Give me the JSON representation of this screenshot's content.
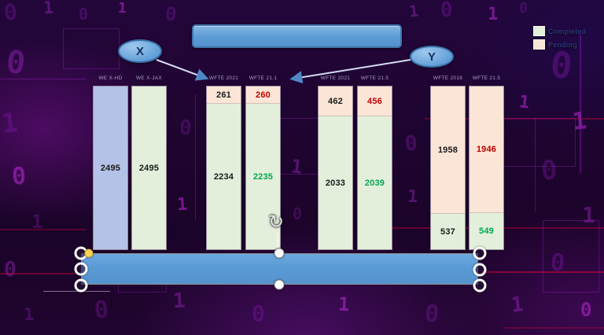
{
  "slide": {
    "title_bar_text": "",
    "legend": {
      "items": [
        {
          "label": "Completed",
          "color": "#e3efdb"
        },
        {
          "label": "Pending",
          "color": "#fbe5d6"
        }
      ]
    },
    "callouts": {
      "x_label": "X",
      "y_label": "Y"
    }
  },
  "colors": {
    "accent_blue": "#5b9bd5",
    "completed_green": "#e3efdb",
    "pending_pink": "#fbe5d6",
    "completed_blue_variant": "#b4c2e7",
    "value_black": "#1a1a1a",
    "value_red": "#c00000",
    "value_green": "#00a651"
  },
  "chart_data": {
    "type": "bar",
    "subtype": "100pct-stacked-column-pairs",
    "title": "",
    "legend_entries": [
      "Completed",
      "Pending"
    ],
    "legend_position": "top-right",
    "total_per_column": 2495,
    "series_colors": {
      "Completed": "#e3efdb",
      "Pending": "#fbe5d6"
    },
    "columns": [
      {
        "header": "WE X-HD",
        "fill_variant": "blue",
        "segments_top_to_bottom": [
          {
            "series": "Completed",
            "value": 2495,
            "label": "2495",
            "label_color": "#1a1a1a"
          }
        ]
      },
      {
        "header": "WE X-JAX",
        "fill_variant": "green",
        "segments_top_to_bottom": [
          {
            "series": "Completed",
            "value": 2495,
            "label": "2495",
            "label_color": "#1a1a1a"
          }
        ]
      },
      {
        "header": "WFTE 2021",
        "fill_variant": "green",
        "segments_top_to_bottom": [
          {
            "series": "Pending",
            "value": 261,
            "label": "261",
            "label_color": "#1a1a1a"
          },
          {
            "series": "Completed",
            "value": 2234,
            "label": "2234",
            "label_color": "#1a1a1a"
          }
        ]
      },
      {
        "header": "WFTE 21.1",
        "fill_variant": "green",
        "segments_top_to_bottom": [
          {
            "series": "Pending",
            "value": 260,
            "label": "260",
            "label_color": "#c00000"
          },
          {
            "series": "Completed",
            "value": 2235,
            "label": "2235",
            "label_color": "#00a651"
          }
        ]
      },
      {
        "header": "WFTE 2021",
        "fill_variant": "green",
        "segments_top_to_bottom": [
          {
            "series": "Pending",
            "value": 462,
            "label": "462",
            "label_color": "#1a1a1a"
          },
          {
            "series": "Completed",
            "value": 2033,
            "label": "2033",
            "label_color": "#1a1a1a"
          }
        ]
      },
      {
        "header": "WFTE 21.5",
        "fill_variant": "green",
        "segments_top_to_bottom": [
          {
            "series": "Pending",
            "value": 456,
            "label": "456",
            "label_color": "#c00000"
          },
          {
            "series": "Completed",
            "value": 2039,
            "label": "2039",
            "label_color": "#00a651"
          }
        ]
      },
      {
        "header": "WFTE 2018",
        "fill_variant": "green",
        "segments_top_to_bottom": [
          {
            "series": "Pending",
            "value": 1958,
            "label": "1958",
            "label_color": "#1a1a1a"
          },
          {
            "series": "Completed",
            "value": 537,
            "label": "537",
            "label_color": "#1a1a1a"
          }
        ]
      },
      {
        "header": "WFTE 21.5",
        "fill_variant": "green",
        "segments_top_to_bottom": [
          {
            "series": "Pending",
            "value": 1946,
            "label": "1946",
            "label_color": "#c00000"
          },
          {
            "series": "Completed",
            "value": 549,
            "label": "549",
            "label_color": "#00a651"
          }
        ]
      }
    ]
  },
  "selection": {
    "rotate_icon": "↻"
  }
}
